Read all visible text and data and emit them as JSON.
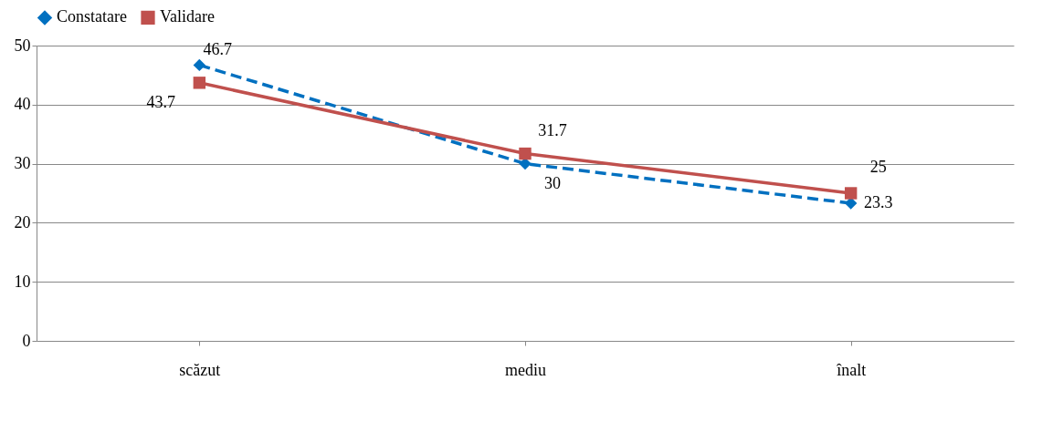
{
  "chart_data": {
    "type": "line",
    "categories": [
      "scăzut",
      "mediu",
      "înalt"
    ],
    "series": [
      {
        "name": "Constatare",
        "color": "#0070c0",
        "values": [
          46.7,
          30,
          23.3
        ],
        "line_style": "dashed",
        "marker": "diamond"
      },
      {
        "name": "Validare",
        "color": "#c0504d",
        "values": [
          43.7,
          31.7,
          25
        ],
        "line_style": "solid",
        "marker": "square"
      }
    ],
    "ylim": [
      0,
      50
    ],
    "yticks": [
      0,
      10,
      20,
      30,
      40,
      50
    ],
    "grid": "y",
    "legend": "top",
    "data_labels": true
  }
}
